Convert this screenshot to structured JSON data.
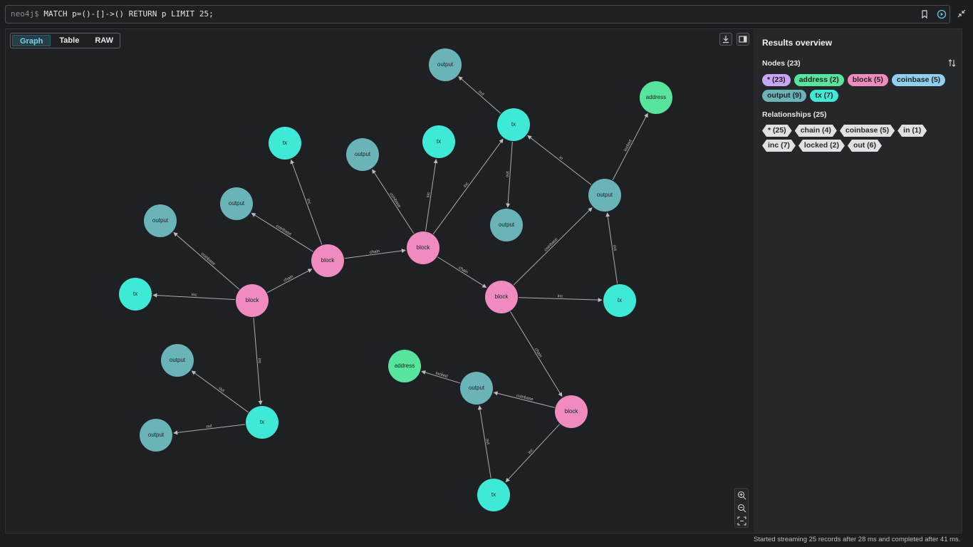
{
  "query": {
    "prompt": "neo4j$",
    "text": " MATCH p=()-[]->() RETURN p LIMIT 25;"
  },
  "view_tabs": [
    {
      "label": "Graph",
      "active": true
    },
    {
      "label": "Table",
      "active": false
    },
    {
      "label": "RAW",
      "active": false
    }
  ],
  "overview": {
    "title": "Results overview",
    "nodes_title": "Nodes (23)",
    "relationships_title": "Relationships (25)",
    "node_labels": [
      {
        "text": "* (23)",
        "color": "#c7a6f5"
      },
      {
        "text": "address (2)",
        "color": "#57e59e"
      },
      {
        "text": "block (5)",
        "color": "#f08bbf"
      },
      {
        "text": "coinbase (5)",
        "color": "#8ed0ee"
      },
      {
        "text": "output (9)",
        "color": "#6ab4b8"
      },
      {
        "text": "tx (7)",
        "color": "#3eead5"
      }
    ],
    "rel_types": [
      {
        "text": "* (25)"
      },
      {
        "text": "chain (4)"
      },
      {
        "text": "coinbase (5)"
      },
      {
        "text": "in (1)"
      },
      {
        "text": "inc (7)"
      },
      {
        "text": "locked (2)"
      },
      {
        "text": "out (6)"
      }
    ]
  },
  "status_text": "Started streaming 25 records after 28 ms and completed after 41 ms.",
  "node_colors": {
    "block": "#f08bbf",
    "tx": "#3eead5",
    "output": "#6ab4b8",
    "address": "#57e59e"
  },
  "graph": {
    "nodes": [
      {
        "id": "out_a",
        "label": "output",
        "type": "output"
      },
      {
        "id": "tx_a",
        "label": "tx",
        "type": "tx"
      },
      {
        "id": "addr_a",
        "label": "address",
        "type": "address"
      },
      {
        "id": "tx_b",
        "label": "tx",
        "type": "tx"
      },
      {
        "id": "tx_c",
        "label": "tx",
        "type": "tx"
      },
      {
        "id": "out_b",
        "label": "output",
        "type": "output"
      },
      {
        "id": "out_c",
        "label": "output",
        "type": "output"
      },
      {
        "id": "out_d",
        "label": "output",
        "type": "output"
      },
      {
        "id": "out_e",
        "label": "output",
        "type": "output"
      },
      {
        "id": "out_f",
        "label": "output",
        "type": "output"
      },
      {
        "id": "block_a",
        "label": "block",
        "type": "block"
      },
      {
        "id": "block_b",
        "label": "block",
        "type": "block"
      },
      {
        "id": "block_c",
        "label": "block",
        "type": "block"
      },
      {
        "id": "tx_d",
        "label": "tx",
        "type": "tx"
      },
      {
        "id": "block_d",
        "label": "block",
        "type": "block"
      },
      {
        "id": "tx_e",
        "label": "tx",
        "type": "tx"
      },
      {
        "id": "out_g",
        "label": "output",
        "type": "output"
      },
      {
        "id": "addr_b",
        "label": "address",
        "type": "address"
      },
      {
        "id": "out_h",
        "label": "output",
        "type": "output"
      },
      {
        "id": "block_e",
        "label": "block",
        "type": "block"
      },
      {
        "id": "tx_f",
        "label": "tx",
        "type": "tx"
      },
      {
        "id": "out_i",
        "label": "output",
        "type": "output"
      },
      {
        "id": "tx_g",
        "label": "tx",
        "type": "tx"
      }
    ],
    "edges": [
      {
        "from": "tx_a",
        "to": "out_a",
        "label": "out"
      },
      {
        "from": "tx_a",
        "to": "out_e",
        "label": "out"
      },
      {
        "from": "out_f",
        "to": "tx_a",
        "label": "in"
      },
      {
        "from": "out_f",
        "to": "addr_a",
        "label": "locked"
      },
      {
        "from": "block_b",
        "to": "tx_a",
        "label": "inc"
      },
      {
        "from": "block_b",
        "to": "tx_c",
        "label": "inc"
      },
      {
        "from": "block_b",
        "to": "out_b",
        "label": "coinbase"
      },
      {
        "from": "block_b",
        "to": "block_c",
        "label": "chain"
      },
      {
        "from": "block_a",
        "to": "tx_b",
        "label": "inc"
      },
      {
        "from": "block_a",
        "to": "out_c",
        "label": "coinbase"
      },
      {
        "from": "block_a",
        "to": "block_b",
        "label": "chain"
      },
      {
        "from": "block_d",
        "to": "out_d",
        "label": "coinbase"
      },
      {
        "from": "block_d",
        "to": "tx_d",
        "label": "inc"
      },
      {
        "from": "block_d",
        "to": "block_a",
        "label": "chain"
      },
      {
        "from": "block_d",
        "to": "tx_e",
        "label": "inc"
      },
      {
        "from": "block_c",
        "to": "out_f",
        "label": "coinbase"
      },
      {
        "from": "block_c",
        "to": "tx_f",
        "label": "inc"
      },
      {
        "from": "block_c",
        "to": "block_e",
        "label": "chain"
      },
      {
        "from": "tx_f",
        "to": "out_f",
        "label": "out"
      },
      {
        "from": "tx_e",
        "to": "out_g",
        "label": "out"
      },
      {
        "from": "tx_e",
        "to": "out_i",
        "label": "out"
      },
      {
        "from": "out_h",
        "to": "addr_b",
        "label": "locked"
      },
      {
        "from": "block_e",
        "to": "out_h",
        "label": "coinbase"
      },
      {
        "from": "block_e",
        "to": "tx_g",
        "label": "inc"
      },
      {
        "from": "tx_g",
        "to": "out_h",
        "label": "out"
      }
    ]
  }
}
